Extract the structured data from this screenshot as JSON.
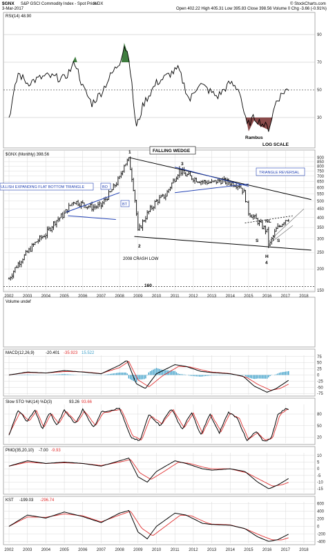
{
  "header": {
    "symbol": "$GNX",
    "name": "S&P GSCI Commodity Index - Spot Price",
    "exchange": "INDX",
    "date": "3-Mar-2017",
    "quote": "Open 402.22  High 405.31  Low 395.83  Close 398.56  Volume 0  Chg -3.66 (-0.91%)",
    "source": "© StockCharts.com"
  },
  "colors": {
    "price": "#000000",
    "signal": "#e03030",
    "trendline": "#1f3fb3",
    "macd_hist": "#3a9ec8",
    "rsi_overbought": "#3f7d3f",
    "rsi_oversold": "#8a4a4a"
  },
  "panels": {
    "rsi": {
      "label": "RSI(14) 48.90",
      "ticks": [
        "90",
        "70",
        "50",
        "30"
      ],
      "levels": [
        90,
        70,
        50,
        30
      ]
    },
    "price": {
      "label": "$GNX (Monthly) 398.56",
      "ticks": [
        "900",
        "850",
        "800",
        "750",
        "700",
        "650",
        "600",
        "550",
        "500",
        "450",
        "400",
        "350",
        "300",
        "250",
        "200",
        "150"
      ]
    },
    "volume": {
      "label": "Volume undef"
    },
    "macd": {
      "label": "MACD(12,26,9)",
      "v1": "-20.401",
      "v2": "-35.923",
      "v3": "15.522",
      "ticks": [
        "75",
        "50",
        "25",
        "0",
        "-25",
        "-50",
        "-75"
      ]
    },
    "sto": {
      "label": "Slow STO %K(14) %D(3)",
      "v1": "93.26",
      "v2": "93.66",
      "ticks": [
        "80",
        "50",
        "20"
      ]
    },
    "pmo": {
      "label": "PMO(35,20,10)",
      "v1": "-7.00",
      "v2": "-9.93",
      "ticks": [
        "10",
        "5",
        "0",
        "-5",
        "-10",
        "-15"
      ]
    },
    "kst": {
      "label": "KST",
      "v1": "-199.03",
      "v2": "-296.74",
      "ticks": [
        "600",
        "400",
        "200",
        "0",
        "-200",
        "-400"
      ]
    }
  },
  "annotations": {
    "rambus": "Rambus",
    "log_scale": "LOG SCALE",
    "falling_wedge": "FALLING WEDGE",
    "triangle_reversal": "TRIANGLE REVERSAL",
    "expanding_triangle": "ULLISH EXPANDING FLAT BOTTOM TRIANGLE",
    "bo": "BO",
    "bt": "BT",
    "crash_low": "2008 CRASH LOW",
    "label_160": "160",
    "p1": "1",
    "p2": "2",
    "p3": "3",
    "p4": "4",
    "h": "H",
    "s1": "S",
    "s2": "S",
    "nl": "NL"
  },
  "chart_data": {
    "type": "line",
    "title": "$GNX (Monthly) 398.56",
    "x": [
      2002.0,
      2002.5,
      2003.0,
      2003.5,
      2004.0,
      2004.5,
      2005.0,
      2005.5,
      2006.0,
      2006.5,
      2007.0,
      2007.5,
      2008.0,
      2008.25,
      2008.5,
      2008.75,
      2009.0,
      2009.5,
      2010.0,
      2010.5,
      2011.0,
      2011.25,
      2011.5,
      2012.0,
      2012.5,
      2013.0,
      2013.5,
      2014.0,
      2014.5,
      2014.75,
      2015.0,
      2015.5,
      2016.0,
      2016.1,
      2016.5,
      2017.0,
      2017.2
    ],
    "xlabels": [
      "2002",
      "2003",
      "2004",
      "2005",
      "2006",
      "2007",
      "2008",
      "2009",
      "2010",
      "2011",
      "2012",
      "2013",
      "2014",
      "2015",
      "2016",
      "2017",
      "2018"
    ],
    "ylim": [
      150,
      950
    ],
    "y_scale": "log",
    "series": [
      {
        "values": [
          175,
          215,
          250,
          290,
          320,
          380,
          420,
          500,
          480,
          460,
          470,
          560,
          680,
          820,
          870,
          600,
          330,
          420,
          500,
          540,
          680,
          760,
          720,
          680,
          650,
          640,
          660,
          640,
          620,
          560,
          430,
          380,
          330,
          270,
          340,
          390,
          398
        ]
      }
    ],
    "annotations": [
      "1",
      "2",
      "3",
      "4",
      "H",
      "S",
      "S",
      "NL",
      "FALLING WEDGE",
      "TRIANGLE REVERSAL",
      "BO",
      "BT",
      "2008 CRASH LOW",
      "160",
      "Rambus",
      "LOG SCALE"
    ]
  }
}
